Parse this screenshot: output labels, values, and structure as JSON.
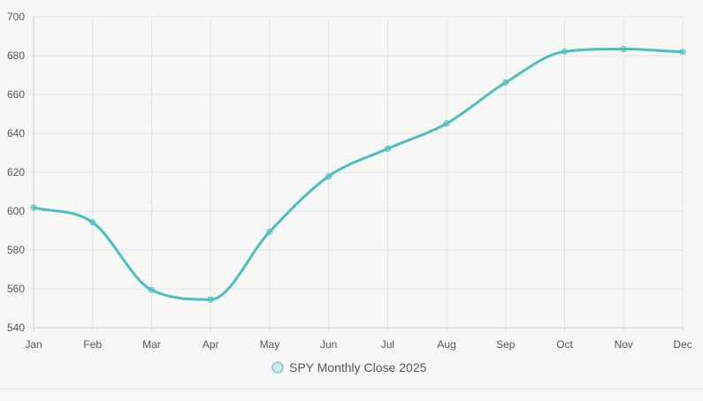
{
  "chart_data": {
    "type": "line",
    "categories": [
      "Jan",
      "Feb",
      "Mar",
      "Apr",
      "May",
      "Jun",
      "Jul",
      "Aug",
      "Sep",
      "Oct",
      "Nov",
      "Dec"
    ],
    "series": [
      {
        "name": "SPY Monthly Close 2025",
        "values": [
          601.8,
          594.2,
          559.4,
          554.5,
          589.4,
          617.9,
          632.1,
          645.1,
          666.2,
          682.1,
          683.4,
          681.9
        ],
        "color": "#4bbfbf"
      }
    ],
    "ylim": [
      540,
      700
    ],
    "yticks": [
      "540",
      "560",
      "580",
      "600",
      "620",
      "640",
      "660",
      "680",
      "700"
    ],
    "grid": true,
    "legend": "bottom-center",
    "curve": "smooth",
    "xlabel": "",
    "ylabel": ""
  }
}
